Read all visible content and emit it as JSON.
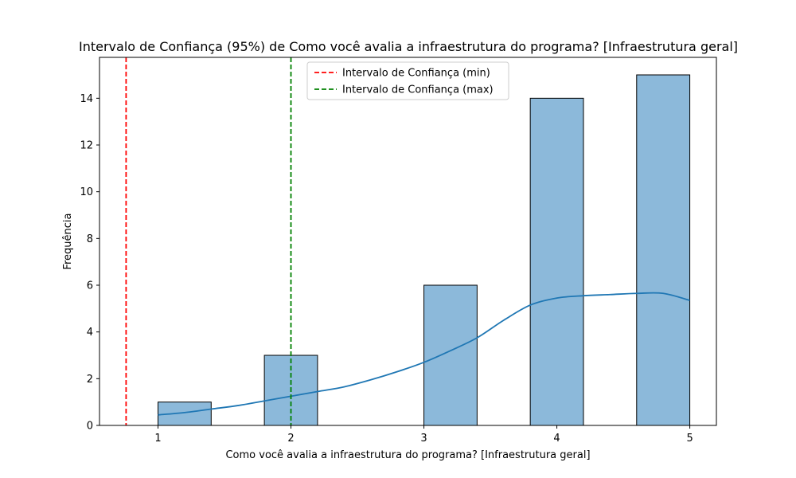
{
  "chart_data": {
    "type": "bar",
    "title": "Intervalo de Confiança (95%) de Como você avalia a  infraestrutura do programa? [Infraestrutura geral]",
    "xlabel": "Como você avalia a  infraestrutura do programa? [Infraestrutura geral]",
    "ylabel": "Frequência",
    "xlim": [
      0.56,
      5.2
    ],
    "ylim": [
      0,
      15.75
    ],
    "x_ticks": [
      1,
      2,
      3,
      4,
      5
    ],
    "y_ticks": [
      0,
      2,
      4,
      6,
      8,
      10,
      12,
      14
    ],
    "bars": [
      {
        "x0": 1.0,
        "x1": 1.4,
        "value": 1
      },
      {
        "x0": 1.8,
        "x1": 2.2,
        "value": 3
      },
      {
        "x0": 3.0,
        "x1": 3.4,
        "value": 6
      },
      {
        "x0": 3.8,
        "x1": 4.2,
        "value": 14
      },
      {
        "x0": 4.6,
        "x1": 5.0,
        "value": 15
      }
    ],
    "bar_color": "#8cb9da",
    "kde": {
      "color": "#1f77b4",
      "x": [
        1.0,
        1.2,
        1.4,
        1.6,
        1.8,
        2.0,
        2.2,
        2.4,
        2.6,
        2.8,
        3.0,
        3.2,
        3.4,
        3.6,
        3.8,
        4.0,
        4.2,
        4.4,
        4.6,
        4.8,
        5.0
      ],
      "y": [
        0.45,
        0.55,
        0.7,
        0.85,
        1.05,
        1.25,
        1.45,
        1.65,
        1.95,
        2.3,
        2.7,
        3.2,
        3.75,
        4.5,
        5.15,
        5.45,
        5.55,
        5.6,
        5.65,
        5.65,
        5.35
      ]
    },
    "ci_lines": [
      {
        "name": "Intervalo de Confiança (min)",
        "x": 0.76,
        "color": "#ff0000"
      },
      {
        "name": "Intervalo de Confiança (max)",
        "x": 2.0,
        "color": "#008000"
      }
    ],
    "legend_position": "top-center",
    "grid": false
  }
}
